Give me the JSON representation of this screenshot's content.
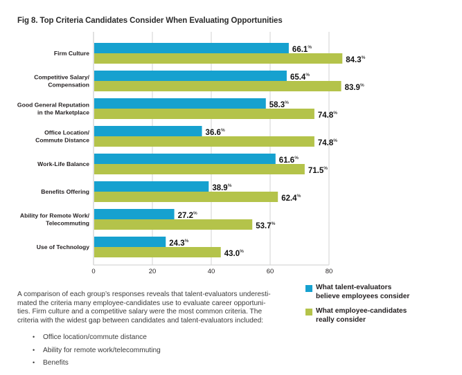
{
  "chart_data": {
    "type": "bar",
    "orientation": "horizontal",
    "title": "Fig 8. Top Criteria Candidates Consider When Evaluating Opportunities",
    "categories": [
      [
        "Firm Culture"
      ],
      [
        "Competitive Salary/",
        "Compensation"
      ],
      [
        "Good General Reputation",
        "in the Marketplace"
      ],
      [
        "Office Location/",
        "Commute Distance"
      ],
      [
        "Work-Life Balance"
      ],
      [
        "Benefits Offering"
      ],
      [
        "Ability for Remote Work/",
        "Telecommuting"
      ],
      [
        "Use of Technology"
      ]
    ],
    "series": [
      {
        "name": "What talent-evaluators believe employees consider",
        "legend_lines": [
          "What talent-evaluators",
          "believe employees consider"
        ],
        "color": "#16a1cf",
        "values": [
          66.1,
          65.4,
          58.3,
          36.6,
          61.6,
          38.9,
          27.2,
          24.3
        ],
        "labels": [
          "66.1",
          "65.4",
          "58.3",
          "36.6",
          "61.6",
          "38.9",
          "27.2",
          "24.3"
        ]
      },
      {
        "name": "What employee-candidates really consider",
        "legend_lines": [
          "What employee-candidates",
          "really consider"
        ],
        "color": "#b4c34a",
        "values": [
          84.3,
          83.9,
          74.8,
          74.8,
          71.5,
          62.4,
          53.7,
          43.0
        ],
        "labels": [
          "84.3",
          "83.9",
          "74.8",
          "74.8",
          "71.5",
          "62.4",
          "53.7",
          "43.0"
        ]
      }
    ],
    "value_suffix": "%",
    "xlabel": "",
    "ylabel": "",
    "xlim": [
      0,
      80
    ],
    "xticks": [
      0,
      20,
      40,
      60,
      80
    ],
    "grid": true,
    "legend_position": "bottom-right"
  },
  "description": {
    "paragraph": "A comparison of each group's responses reveals that talent-evaluators underesti-mated the criteria many employee-candidates use to evaluate career opportuni-ties. Firm culture and a competitive salary were the most common criteria. The criteria with the widest gap between candidates and talent-evaluators included:",
    "paragraph_lines": [
      "A comparison of each group’s responses reveals that talent-evaluators underesti-",
      "mated the criteria many employee-candidates use to evaluate career opportuni-",
      "ties. Firm culture and a competitive salary were the most common criteria. The",
      "criteria with the widest gap between candidates and talent-evaluators included:"
    ],
    "bullets": [
      "Office location/commute distance",
      "Ability for remote work/telecommuting",
      "Benefits"
    ]
  }
}
